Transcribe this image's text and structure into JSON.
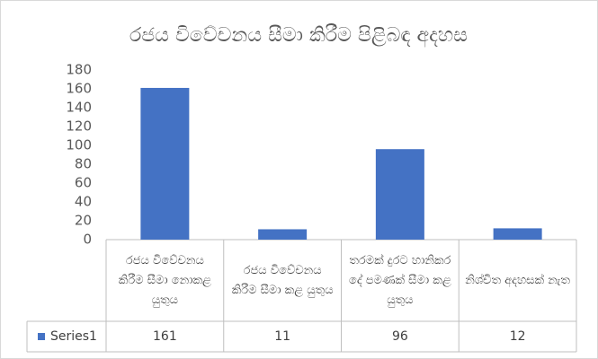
{
  "chart_data": {
    "type": "bar",
    "title": "රජය විවේචනය සීමා කිරීම පිළිබඳ අදහස",
    "categories": [
      "රජය විවේචනය කිරීම සීමා නොකළ යුතුය",
      "රජය විවේචනය කිරීම සීමා කළ යුතුය",
      "තරමක් දුරට හානිකර දේ පමණක් සීමා කළ යුතුය",
      "නිශ්චිත අදහසක් නැත"
    ],
    "series": [
      {
        "name": "Series1",
        "color": "#4472c4",
        "values": [
          161,
          11,
          96,
          12
        ]
      }
    ],
    "ylim": [
      0,
      180
    ],
    "yticks": [
      0,
      20,
      40,
      60,
      80,
      100,
      120,
      140,
      160,
      180
    ],
    "grid": false
  }
}
